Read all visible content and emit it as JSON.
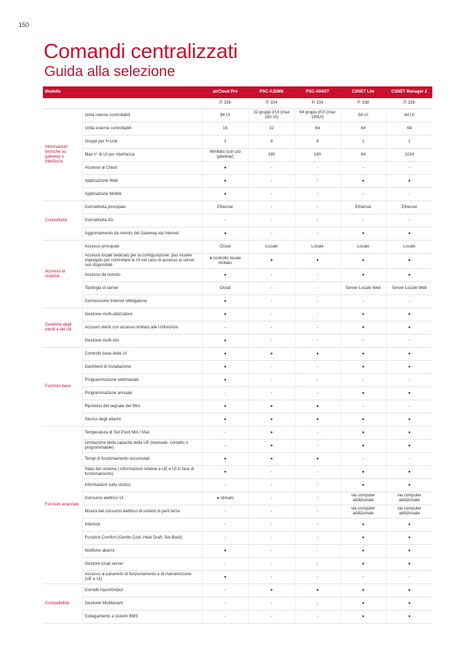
{
  "page_number": "150",
  "header": {
    "title": "Comandi centralizzati",
    "subtitle": "Guida alla selezione"
  },
  "table": {
    "columns": [
      "Modello",
      "airCloud Pro",
      "PSC-A32MN",
      "PSC-A64GT",
      "CSNET Lite",
      "CSNET Manager 2"
    ],
    "pages": [
      "P. 336",
      "P. 334",
      "P. 334",
      "P. 338",
      "P. 338"
    ],
    "groups": [
      {
        "label": "Informazioni tecniche su gateway o interfacce",
        "rows": [
          {
            "feature": "Unità interne controllabili",
            "cells": [
              "64 UI",
              "32 gruppi d'UI (max 160 UI)",
              "64 gruppi d'UI (max 160UI)",
              "64 UI",
              "64 UI"
            ]
          },
          {
            "feature": "Unità esterne controllabili",
            "cells": [
              "16",
              "32",
              "64",
              "64",
              "64"
            ]
          },
          {
            "feature": "Gruppi per H-Link",
            "cells": [
              "1",
              "8",
              "8",
              "1",
              "1"
            ]
          },
          {
            "feature": "Max n° di UI per interfaccia",
            "cells": [
              "Illimitato (con più gateway)",
              "160",
              "160",
              "64",
              "1024"
            ]
          },
          {
            "feature": "Accesso al Cloud",
            "cells": [
              "●",
              "-",
              "-",
              "-",
              "-"
            ]
          },
          {
            "feature": "Applicazione Web",
            "cells": [
              "●",
              "-",
              "-",
              "●",
              "●"
            ]
          },
          {
            "feature": "Applicazione Mobile",
            "cells": [
              "●",
              "-",
              "-",
              "-",
              "-"
            ]
          }
        ]
      },
      {
        "label": "Connettività",
        "rows": [
          {
            "feature": "Connettività principale",
            "cells": [
              "Ethernet",
              "-",
              "-",
              "Ethernet",
              "Ethernet"
            ]
          },
          {
            "feature": "Connettività 4G",
            "cells": [
              "-",
              "-",
              "-",
              "-",
              "-"
            ]
          },
          {
            "feature": "Aggiornamento da remoto del Gateway via Internet",
            "cells": [
              "●",
              "-",
              "-",
              "●",
              "●"
            ]
          }
        ]
      },
      {
        "label": "Accesso al sistema",
        "rows": [
          {
            "feature": "Accesso principale",
            "cells": [
              "Cloud",
              "Locale",
              "Locale",
              "Locale",
              "Locale"
            ]
          },
          {
            "feature": "Accesso locale dedicato per la configurazione: può essere impiegato per controllare le UI nel caso di accesso ai server non disponibile",
            "cells": [
              "● controllo locale limitato",
              "●",
              "●",
              "●",
              "●"
            ]
          },
          {
            "feature": "Accesso da remoto",
            "cells": [
              "●",
              "-",
              "-",
              "●",
              "●"
            ]
          },
          {
            "feature": "Tipologia di server",
            "cells": [
              "Cloud",
              "-",
              "-",
              "Server Locale Web",
              "Server Locale Web"
            ]
          },
          {
            "feature": "Connessione Internet obbligatoria",
            "cells": [
              "●",
              "-",
              "-",
              "-",
              "-"
            ]
          }
        ]
      },
      {
        "label": "Gestione degli utenti e dei siti",
        "rows": [
          {
            "feature": "Gestione multi-utilizzatore",
            "cells": [
              "●",
              "-",
              "-",
              "●",
              "●"
            ]
          },
          {
            "feature": "Account utenti con accesso limitato alle UI/funzioni",
            "cells": [
              "-",
              "-",
              "-",
              "●",
              "●"
            ]
          },
          {
            "feature": "Gestione multi-sito",
            "cells": [
              "●",
              "-",
              "-",
              "-",
              "-"
            ]
          }
        ]
      },
      {
        "label": "Funzioni base",
        "rows": [
          {
            "feature": "Controllo base delle UI",
            "cells": [
              "●",
              "●",
              "●",
              "●",
              "●"
            ]
          },
          {
            "feature": "Dashbord di installazione",
            "cells": [
              "●",
              "-",
              "-",
              "●",
              "●"
            ]
          },
          {
            "feature": "Programmazione settimanale",
            "cells": [
              "●",
              "-",
              "-",
              "-",
              "-"
            ]
          },
          {
            "feature": "Programmazione annuale",
            "cells": [
              "-",
              "-",
              "-",
              "●",
              "●"
            ]
          },
          {
            "feature": "Ripristino del segnale del filtro",
            "cells": [
              "●",
              "●",
              "●",
              "-",
              "-"
            ]
          },
          {
            "feature": "Storico degli allarmi",
            "cells": [
              "●",
              "●",
              "●",
              "●",
              "●"
            ]
          }
        ]
      },
      {
        "label": "Funzioni avanzate",
        "rows": [
          {
            "feature": "Temperatura di Set Point Min / Max",
            "cells": [
              "-",
              "●",
              "-",
              "●",
              "●"
            ]
          },
          {
            "feature": "Limitazione della capacità della UE (manuale, contatto o programmabile)",
            "cells": [
              "-",
              "●",
              "-",
              "●",
              "●"
            ]
          },
          {
            "feature": "Tempi di funzionamento accumulati",
            "cells": [
              "●",
              "●",
              "●",
              "-",
              "-"
            ]
          },
          {
            "feature": "Stato del sistema ( informazioni relative a UE e UI in fase di funzionamento)",
            "cells": [
              "●",
              "-",
              "-",
              "●",
              "●"
            ]
          },
          {
            "feature": "Informazioni sullo storico",
            "cells": [
              "-",
              "-",
              "-",
              "●",
              "●"
            ]
          },
          {
            "feature": "Consumo elettrico UI",
            "cells": [
              "● stimato",
              "-",
              "-",
              "via computer addizionale",
              "via computer addizionale"
            ]
          },
          {
            "feature": "Misura del consumo elettrico di sistemi di parti terze",
            "cells": [
              "-",
              "-",
              "-",
              "via computer addizionale",
              "via computer addizionale"
            ]
          },
          {
            "feature": "Interlock",
            "cells": [
              "-",
              "-",
              "-",
              "●",
              "●"
            ]
          },
          {
            "feature": "Funzioni Comfort (Gentle Cool, Heat Draft, Set-Back)",
            "cells": [
              "-",
              "-",
              "-",
              "●",
              "●"
            ]
          },
          {
            "feature": "Notifiche allarmi",
            "cells": [
              "●",
              "-",
              "-",
              "●",
              "●"
            ]
          },
          {
            "feature": "Gestioni locali server",
            "cells": [
              "-",
              "-",
              "-",
              "●",
              "●"
            ]
          },
          {
            "feature": "Accesso ai parametri di funzionamento e di manutenzione (UE e UI)",
            "cells": [
              "●",
              "-",
              "-",
              "-",
              "-"
            ]
          }
        ]
      },
      {
        "label": "Compatibilità",
        "rows": [
          {
            "feature": "Contatti Input/Output",
            "cells": [
              "-",
              "●",
              "●",
              "●",
              "●"
            ]
          },
          {
            "feature": "Gestione Multitenant",
            "cells": [
              "-",
              "-",
              "-",
              "●",
              "●"
            ]
          },
          {
            "feature": "Collegamento a sistemi BMS",
            "cells": [
              "-",
              "-",
              "-",
              "●",
              "●"
            ]
          }
        ]
      }
    ]
  }
}
